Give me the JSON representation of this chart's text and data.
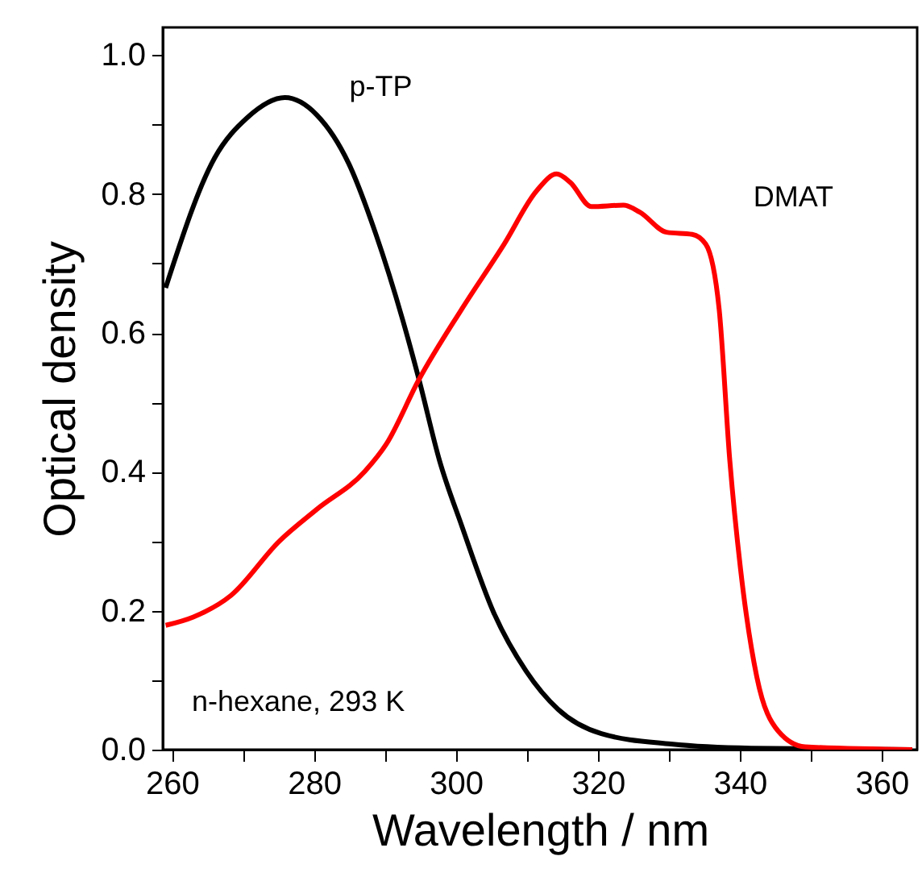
{
  "chart_data": {
    "type": "line",
    "xlabel": "Wavelength / nm",
    "ylabel": "Optical density",
    "xlim": [
      258.7,
      365
    ],
    "ylim": [
      0,
      1.04
    ],
    "xticks": [
      260,
      {
        "value": 270,
        "label": null
      },
      280,
      {
        "value": 290,
        "label": null
      },
      300,
      {
        "value": 310,
        "label": null
      },
      320,
      {
        "value": 330,
        "label": null
      },
      340,
      {
        "value": 350,
        "label": null
      },
      360
    ],
    "yticks": [
      {
        "value": 0,
        "label": "0.0"
      },
      {
        "value": 0.1,
        "label": null
      },
      {
        "value": 0.2,
        "label": "0.2"
      },
      {
        "value": 0.3,
        "label": null
      },
      {
        "value": 0.4,
        "label": "0.4"
      },
      {
        "value": 0.5,
        "label": null
      },
      {
        "value": 0.6,
        "label": "0.6"
      },
      {
        "value": 0.7,
        "label": null
      },
      {
        "value": 0.8,
        "label": "0.8"
      },
      {
        "value": 0.9,
        "label": null
      },
      {
        "value": 1.0,
        "label": "1.0"
      }
    ],
    "grid": false,
    "line_style": "solid",
    "marker": "none",
    "series": [
      {
        "name": "p-TP",
        "color": "#000000",
        "x": [
          259.1,
          266.0,
          270.6,
          275.9,
          280.4,
          284.9,
          288.7,
          292.5,
          294.8,
          297.7,
          300.8,
          305.3,
          309.9,
          314.4,
          320.5,
          330.3,
          341.6,
          364.3
        ],
        "values": [
          0.665,
          0.852,
          0.91,
          0.939,
          0.914,
          0.844,
          0.743,
          0.619,
          0.533,
          0.416,
          0.323,
          0.198,
          0.113,
          0.058,
          0.023,
          0.008,
          0.002,
          0.0
        ]
      },
      {
        "name": "DMAT",
        "color": "#ff0000",
        "x": [
          259.1,
          263.0,
          268.3,
          275.1,
          280.4,
          287.2,
          290.2,
          294.8,
          300.8,
          306.8,
          311.4,
          314.2,
          316.1,
          319.1,
          323.6,
          325.9,
          329.7,
          333.3,
          335.2,
          337.1,
          338.6,
          340.1,
          342.4,
          345.4,
          349.2,
          364.3
        ],
        "values": [
          0.179,
          0.191,
          0.222,
          0.3,
          0.346,
          0.401,
          0.44,
          0.533,
          0.634,
          0.728,
          0.805,
          0.829,
          0.817,
          0.782,
          0.784,
          0.774,
          0.745,
          0.742,
          0.728,
          0.634,
          0.416,
          0.261,
          0.105,
          0.027,
          0.004,
          0.0
        ]
      }
    ],
    "annotations": [
      "n-hexane, 293 K"
    ]
  }
}
